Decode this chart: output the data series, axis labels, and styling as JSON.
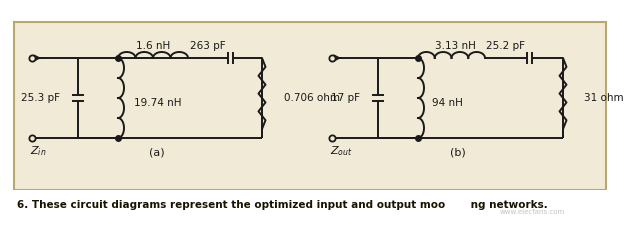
{
  "bg_color": "#f0ead6",
  "border_color": "#b8a870",
  "line_color": "#1a1a1a",
  "caption_text": "6. These circuit diagrams represent the optimized input and output moo",
  "caption_text2": "ng networks.",
  "caption_color": "#2a2a00",
  "label_a": "(a)",
  "label_b": "(b)",
  "left_circuit": {
    "series_L": "1.6 nH",
    "series_C": "263 pF",
    "shunt_C": "25.3 pF",
    "shunt_L": "19.74 nH",
    "shunt_R": "0.706 ohm"
  },
  "right_circuit": {
    "series_L": "3.13 nH",
    "series_C": "25.2 pF",
    "shunt_C": "17 pF",
    "shunt_L": "94 nH",
    "shunt_R": "31 ohm"
  }
}
